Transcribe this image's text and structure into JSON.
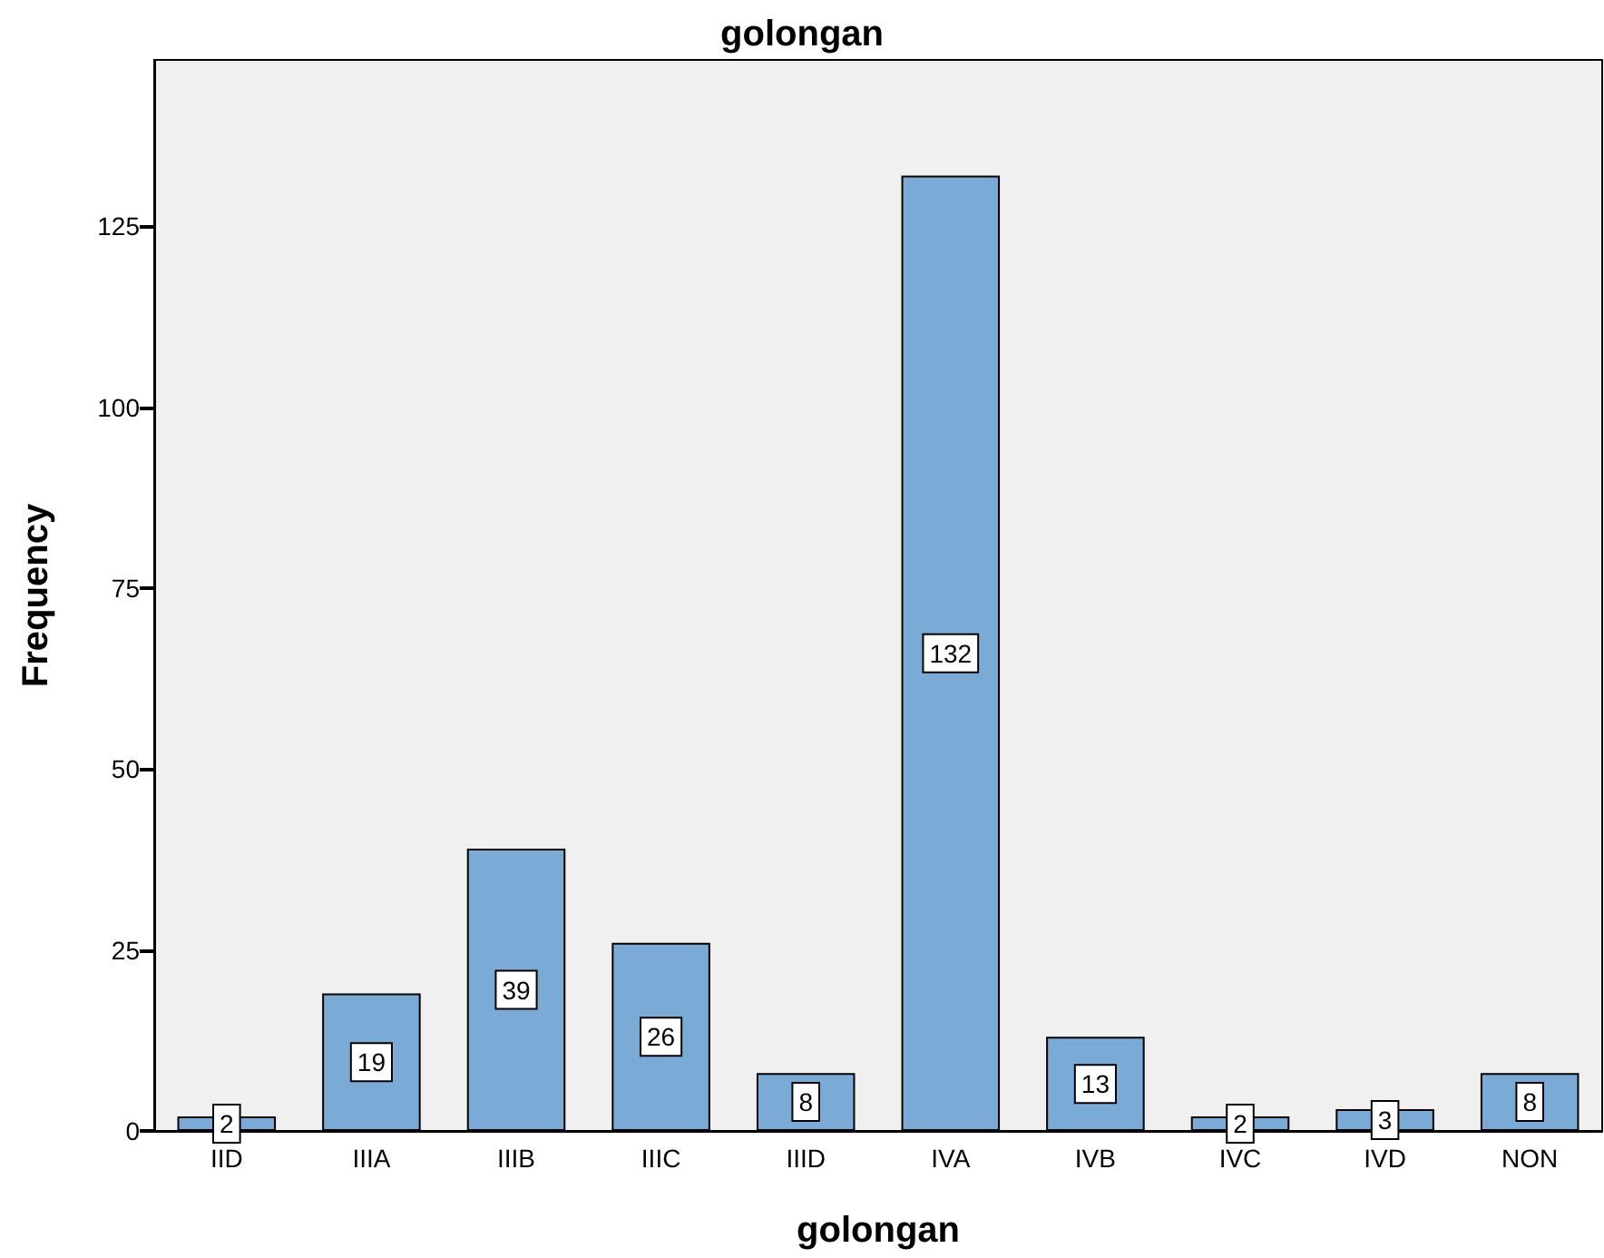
{
  "chart_data": {
    "type": "bar",
    "title": "golongan",
    "xlabel": "golongan",
    "ylabel": "Frequency",
    "categories": [
      "IID",
      "IIIA",
      "IIIB",
      "IIIC",
      "IIID",
      "IVA",
      "IVB",
      "IVC",
      "IVD",
      "NON"
    ],
    "values": [
      2,
      19,
      39,
      26,
      8,
      132,
      13,
      2,
      3,
      8
    ],
    "color": "#7aaad6",
    "ylim": [
      0,
      148
    ],
    "yticks": [
      0,
      25,
      50,
      75,
      100,
      125
    ],
    "data_labels": true
  }
}
